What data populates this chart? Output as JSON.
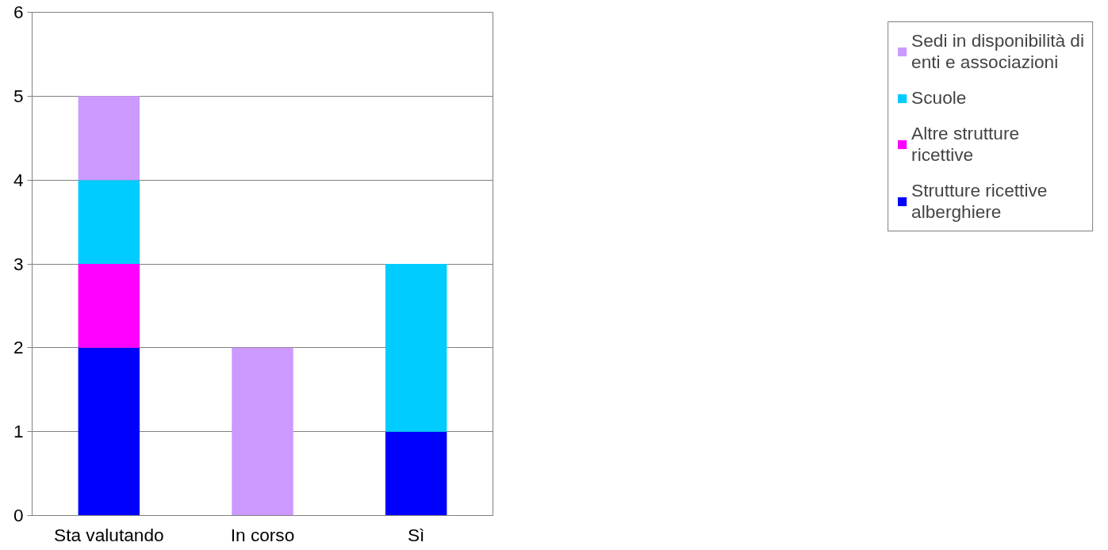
{
  "chart_data": {
    "type": "bar",
    "stacked": true,
    "categories": [
      "Sta valutando",
      "In corso",
      "Sì"
    ],
    "series": [
      {
        "name": "Strutture ricettive alberghiere",
        "color": "#0000ff",
        "values": [
          2,
          0,
          1
        ]
      },
      {
        "name": "Altre strutture ricettive",
        "color": "#ff00ff",
        "values": [
          1,
          0,
          0
        ]
      },
      {
        "name": "Scuole",
        "color": "#00ccff",
        "values": [
          1,
          0,
          2
        ]
      },
      {
        "name": "Sedi in disponibilità di enti e associazioni",
        "color": "#cc99ff",
        "values": [
          1,
          2,
          0
        ]
      }
    ],
    "ylim": [
      0,
      6
    ],
    "yticks": [
      0,
      1,
      2,
      3,
      4,
      5,
      6
    ],
    "grid": "y",
    "legend": "right"
  }
}
